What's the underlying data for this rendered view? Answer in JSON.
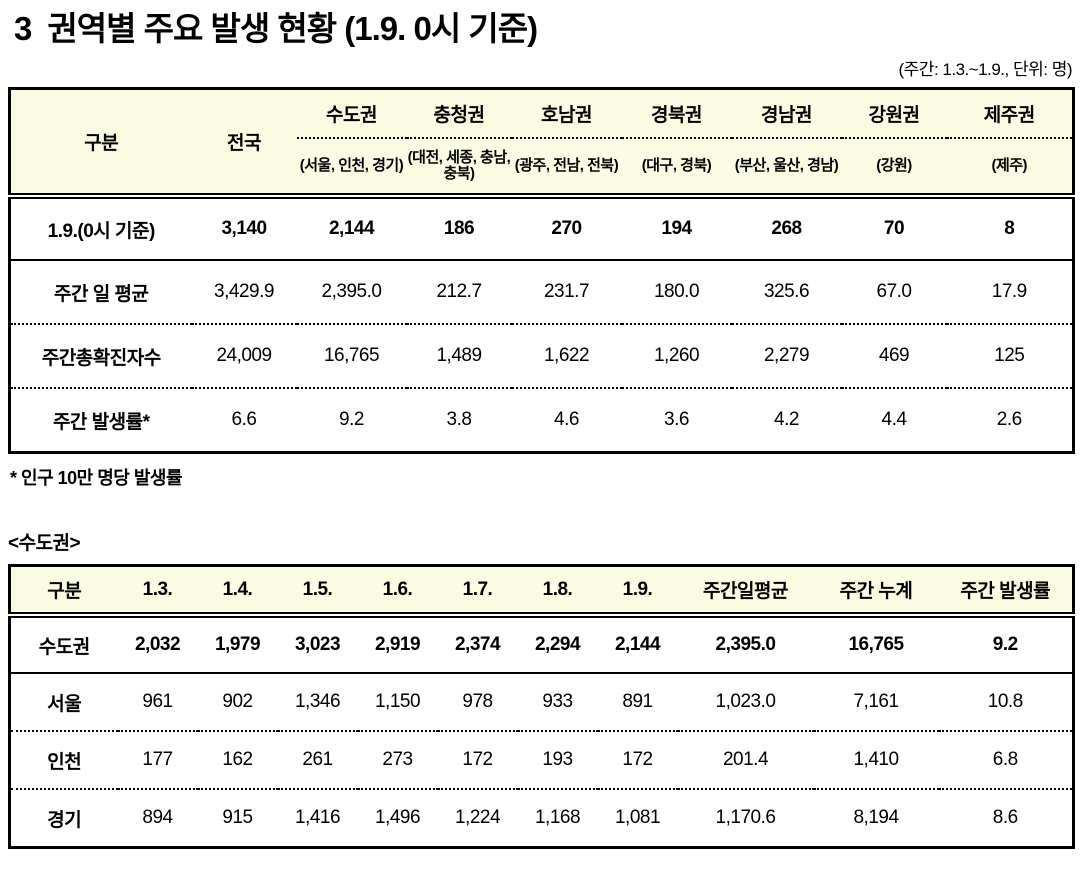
{
  "page": {
    "title_prefix": "3",
    "title": "권역별 주요 발생 현황 (1.9. 0시 기준)",
    "unit_note": "(주간: 1.3.~1.9., 단위: 명)",
    "footnote": "* 인구 10만 명당 발생률",
    "section_label": "<수도권>"
  },
  "colors": {
    "header_bg": "#FBFBE3",
    "border": "#000000",
    "text": "#000000",
    "page_bg": "#FFFFFF"
  },
  "regional_table": {
    "corner_headers": [
      "구분",
      "전국"
    ],
    "regions": [
      {
        "name": "수도권",
        "sub": "(서울, 인천, 경기)"
      },
      {
        "name": "충청권",
        "sub": "(대전, 세종, 충남, 충북)"
      },
      {
        "name": "호남권",
        "sub": "(광주, 전남, 전북)"
      },
      {
        "name": "경북권",
        "sub": "(대구, 경북)"
      },
      {
        "name": "경남권",
        "sub": "(부산, 울산, 경남)"
      },
      {
        "name": "강원권",
        "sub": "(강원)"
      },
      {
        "name": "제주권",
        "sub": "(제주)"
      }
    ],
    "rows": [
      {
        "label": "1.9.(0시 기준)",
        "bold": true,
        "values": [
          "3,140",
          "2,144",
          "186",
          "270",
          "194",
          "268",
          "70",
          "8"
        ]
      },
      {
        "label": "주간 일 평균",
        "bold": false,
        "values": [
          "3,429.9",
          "2,395.0",
          "212.7",
          "231.7",
          "180.0",
          "325.6",
          "67.0",
          "17.9"
        ]
      },
      {
        "label": "주간총확진자수",
        "bold": false,
        "values": [
          "24,009",
          "16,765",
          "1,489",
          "1,622",
          "1,260",
          "2,279",
          "469",
          "125"
        ]
      },
      {
        "label": "주간 발생률*",
        "bold": false,
        "values": [
          "6.6",
          "9.2",
          "3.8",
          "4.6",
          "3.6",
          "4.2",
          "4.4",
          "2.6"
        ]
      }
    ]
  },
  "sudogwon_table": {
    "headers": [
      "구분",
      "1.3.",
      "1.4.",
      "1.5.",
      "1.6.",
      "1.7.",
      "1.8.",
      "1.9.",
      "주간일평균",
      "주간 누계",
      "주간 발생률"
    ],
    "rows": [
      {
        "label": "수도권",
        "bold": true,
        "values": [
          "2,032",
          "1,979",
          "3,023",
          "2,919",
          "2,374",
          "2,294",
          "2,144",
          "2,395.0",
          "16,765",
          "9.2"
        ]
      },
      {
        "label": "서울",
        "bold": false,
        "values": [
          "961",
          "902",
          "1,346",
          "1,150",
          "978",
          "933",
          "891",
          "1,023.0",
          "7,161",
          "10.8"
        ]
      },
      {
        "label": "인천",
        "bold": false,
        "values": [
          "177",
          "162",
          "261",
          "273",
          "172",
          "193",
          "172",
          "201.4",
          "1,410",
          "6.8"
        ]
      },
      {
        "label": "경기",
        "bold": false,
        "values": [
          "894",
          "915",
          "1,416",
          "1,496",
          "1,224",
          "1,168",
          "1,081",
          "1,170.6",
          "8,194",
          "8.6"
        ]
      }
    ]
  }
}
